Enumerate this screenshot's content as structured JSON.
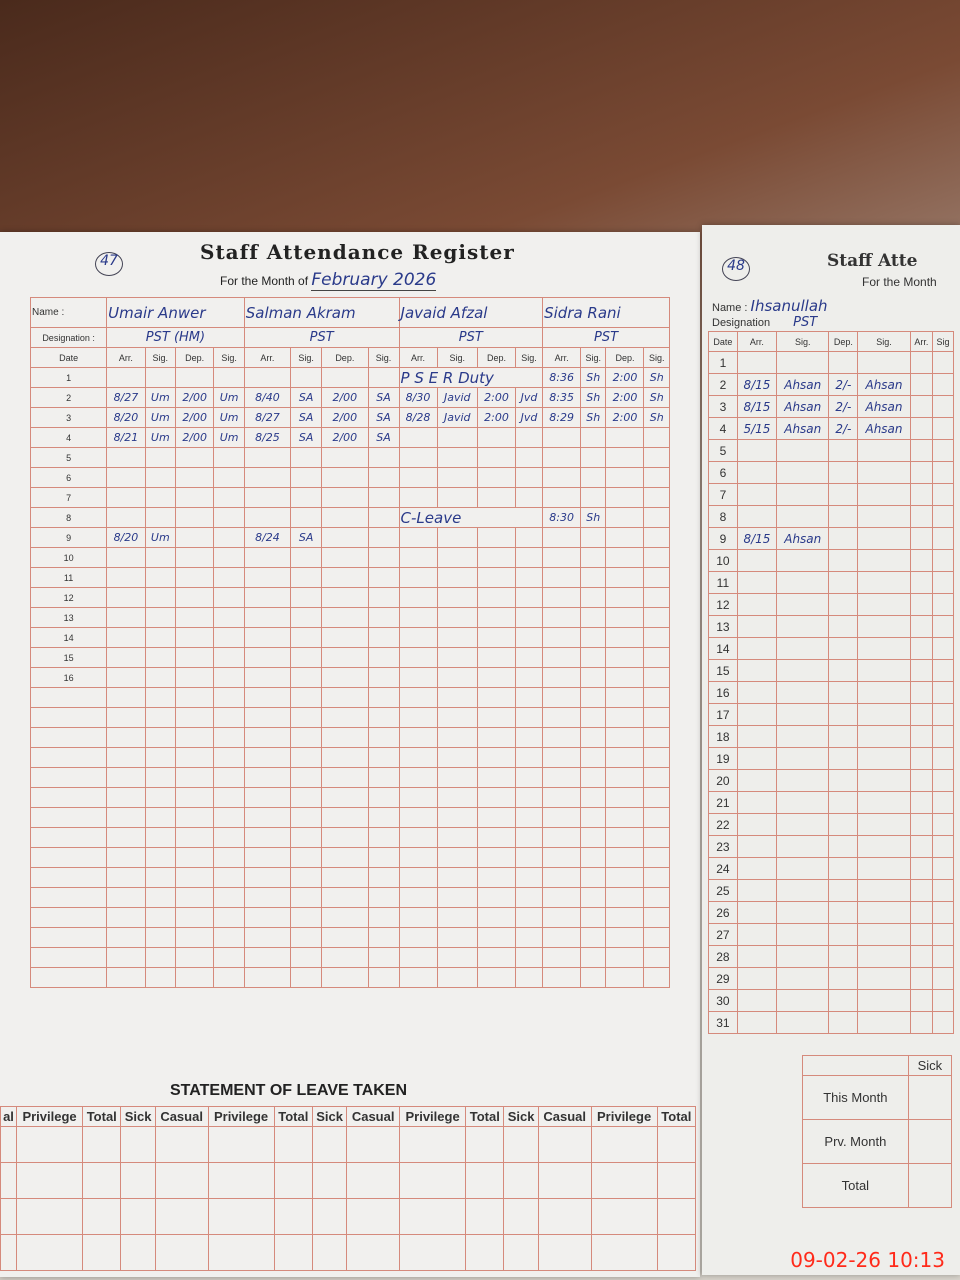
{
  "left_page": {
    "page_number": "47",
    "title": "Staff Attendance Register",
    "month_label": "For the Month of",
    "month_value": "February 2026",
    "name_label": "Name :",
    "designation_label": "Designation :",
    "date_label": "Date",
    "sub_headers": [
      "Arr.",
      "Sig.",
      "Dep.",
      "Sig."
    ],
    "staff": [
      {
        "name": "Umair Anwer",
        "designation": "PST (HM)"
      },
      {
        "name": "Salman Akram",
        "designation": "PST"
      },
      {
        "name": "Javaid Afzal",
        "designation": "PST"
      },
      {
        "name": "Sidra Rani",
        "designation": "PST"
      }
    ],
    "dates": [
      "1",
      "2",
      "3",
      "4",
      "5",
      "6",
      "7",
      "8",
      "9",
      "10",
      "11",
      "12",
      "13",
      "14",
      "15",
      "16"
    ],
    "entries": [
      [
        "",
        "",
        "",
        "",
        "",
        "",
        "",
        "",
        "P S E R Duty",
        "",
        "",
        "",
        "8:36",
        "Sh",
        "2:00",
        "Sh"
      ],
      [
        "8/27",
        "Um",
        "2/00",
        "Um",
        "8/40",
        "SA",
        "2/00",
        "SA",
        "8/30",
        "Javid",
        "2:00",
        "Jvd",
        "8:35",
        "Sh",
        "2:00",
        "Sh"
      ],
      [
        "8/20",
        "Um",
        "2/00",
        "Um",
        "8/27",
        "SA",
        "2/00",
        "SA",
        "8/28",
        "Javid",
        "2:00",
        "Jvd",
        "8:29",
        "Sh",
        "2:00",
        "Sh"
      ],
      [
        "8/21",
        "Um",
        "2/00",
        "Um",
        "8/25",
        "SA",
        "2/00",
        "SA",
        "",
        "",
        "",
        "",
        "",
        "",
        "",
        ""
      ],
      [
        "",
        "",
        "",
        "",
        "",
        "",
        "",
        "",
        "",
        "",
        "",
        "",
        "",
        "",
        "",
        ""
      ],
      [
        "",
        "",
        "",
        "",
        "",
        "",
        "",
        "",
        "",
        "",
        "",
        "",
        "",
        "",
        "",
        ""
      ],
      [
        "",
        "",
        "",
        "",
        "",
        "",
        "",
        "",
        "",
        "",
        "",
        "",
        "",
        "",
        "",
        ""
      ],
      [
        "",
        "",
        "",
        "",
        "",
        "",
        "",
        "",
        "C-Leave",
        "",
        "",
        "",
        "8:30",
        "Sh",
        "",
        ""
      ],
      [
        "8/20",
        "Um",
        "",
        "",
        "8/24",
        "SA",
        "",
        "",
        "",
        "",
        "",
        "",
        "",
        "",
        "",
        ""
      ]
    ],
    "leave_statement": {
      "title": "STATEMENT OF LEAVE TAKEN",
      "headers": [
        "al",
        "Privilege",
        "Total",
        "Sick",
        "Casual",
        "Privilege",
        "Total",
        "Sick",
        "Casual",
        "Privilege",
        "Total",
        "Sick",
        "Casual",
        "Privilege",
        "Total"
      ]
    }
  },
  "right_page": {
    "page_number": "48",
    "title": "Staff Atte",
    "month_label": "For the Month",
    "name_label": "Name :",
    "name_value": "Ihsanullah",
    "designation_label": "Designation",
    "designation_value": "PST",
    "headers": [
      "Date",
      "Arr.",
      "Sig.",
      "Dep.",
      "Sig.",
      "Arr.",
      "Sig"
    ],
    "dates": [
      "1",
      "2",
      "3",
      "4",
      "5",
      "6",
      "7",
      "8",
      "9",
      "10",
      "11",
      "12",
      "13",
      "14",
      "15",
      "16",
      "17",
      "18",
      "19",
      "20",
      "21",
      "22",
      "23",
      "24",
      "25",
      "26",
      "27",
      "28",
      "29",
      "30",
      "31"
    ],
    "entries": [
      [
        "",
        "",
        "",
        ""
      ],
      [
        "8/15",
        "Ahsan",
        "2/-",
        "Ahsan"
      ],
      [
        "8/15",
        "Ahsan",
        "2/-",
        "Ahsan"
      ],
      [
        "5/15",
        "Ahsan",
        "2/-",
        "Ahsan"
      ],
      [
        "",
        "",
        "",
        ""
      ],
      [
        "",
        "",
        "",
        ""
      ],
      [
        "",
        "",
        "",
        ""
      ],
      [
        "",
        "",
        "",
        ""
      ],
      [
        "8/15",
        "Ahsan",
        "",
        ""
      ]
    ],
    "leave_header": "Sick",
    "leave_rows": [
      "This Month",
      "Prv. Month",
      "Total"
    ]
  },
  "timestamp": "09-02-26 10:13",
  "colors": {
    "ruling": "#d58a7c",
    "ink": "#2a3a8a",
    "timestamp": "#ff2a1a"
  }
}
